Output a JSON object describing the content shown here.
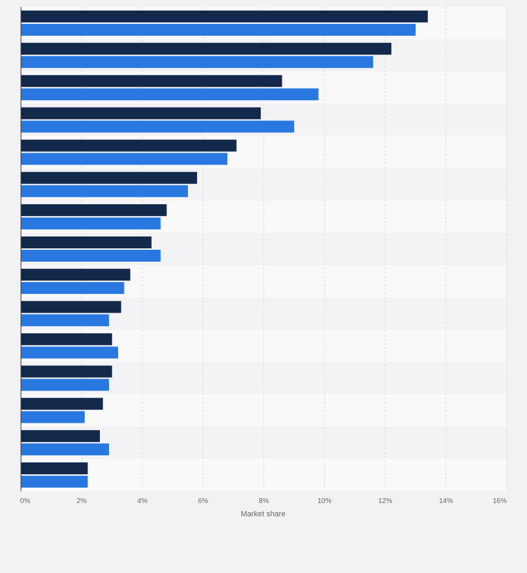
{
  "chart_data": {
    "type": "bar",
    "orientation": "horizontal",
    "title": "",
    "xlabel": "Market share",
    "ylabel": "",
    "xlim": [
      0,
      16
    ],
    "x_ticks": [
      "0%",
      "2%",
      "4%",
      "6%",
      "8%",
      "10%",
      "12%",
      "14%",
      "16%"
    ],
    "grid": true,
    "legend": "none",
    "categories": [
      "",
      "",
      "",
      "",
      "",
      "",
      "",
      "",
      "",
      "",
      "",
      "",
      "",
      "",
      ""
    ],
    "series": [
      {
        "color": "#13294b",
        "values": [
          13.4,
          12.2,
          8.6,
          7.9,
          7.1,
          5.8,
          4.8,
          4.3,
          3.6,
          3.3,
          3.0,
          3.0,
          2.7,
          2.6,
          2.2
        ]
      },
      {
        "color": "#2878e0",
        "values": [
          13.0,
          11.6,
          9.8,
          9.0,
          6.8,
          5.5,
          4.6,
          4.6,
          3.4,
          2.9,
          3.2,
          2.9,
          2.1,
          2.9,
          2.2
        ]
      }
    ],
    "colors": {
      "background": "#f2f2f4",
      "row_odd": "#f9f9fa",
      "row_even": "#f3f3f5",
      "grid": "#d9d9d9",
      "axis": "#333333"
    }
  }
}
